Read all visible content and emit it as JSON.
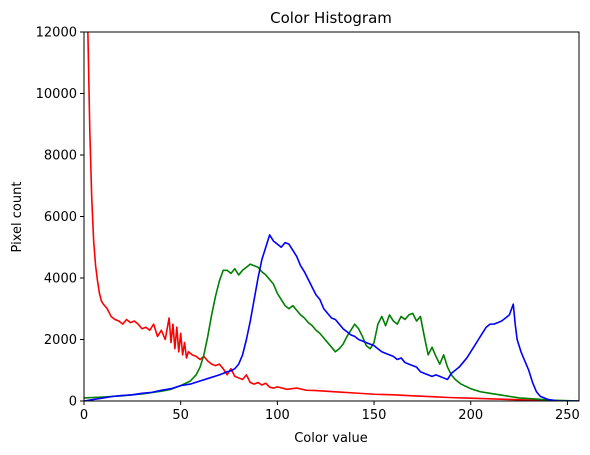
{
  "chart_data": {
    "type": "line",
    "title": "Color Histogram",
    "xlabel": "Color value",
    "ylabel": "Pixel count",
    "xlim": [
      0,
      256
    ],
    "ylim": [
      0,
      12000
    ],
    "xticks": [
      0,
      50,
      100,
      150,
      200,
      250
    ],
    "yticks": [
      0,
      2000,
      4000,
      6000,
      8000,
      10000,
      12000
    ],
    "grid": false,
    "legend": "none",
    "series": [
      {
        "color": "#ff0000",
        "points": [
          [
            2,
            12000
          ],
          [
            3,
            8800
          ],
          [
            4,
            6600
          ],
          [
            5,
            5200
          ],
          [
            6,
            4400
          ],
          [
            7,
            3900
          ],
          [
            8,
            3500
          ],
          [
            9,
            3250
          ],
          [
            10,
            3150
          ],
          [
            12,
            3000
          ],
          [
            14,
            2750
          ],
          [
            16,
            2650
          ],
          [
            18,
            2600
          ],
          [
            20,
            2500
          ],
          [
            22,
            2650
          ],
          [
            24,
            2550
          ],
          [
            26,
            2600
          ],
          [
            28,
            2500
          ],
          [
            30,
            2350
          ],
          [
            32,
            2400
          ],
          [
            34,
            2300
          ],
          [
            36,
            2500
          ],
          [
            38,
            2100
          ],
          [
            40,
            2300
          ],
          [
            42,
            2000
          ],
          [
            44,
            2700
          ],
          [
            45,
            1900
          ],
          [
            46,
            2500
          ],
          [
            47,
            1700
          ],
          [
            48,
            2400
          ],
          [
            49,
            1600
          ],
          [
            50,
            2200
          ],
          [
            51,
            1500
          ],
          [
            52,
            1900
          ],
          [
            53,
            1400
          ],
          [
            54,
            1600
          ],
          [
            56,
            1500
          ],
          [
            58,
            1450
          ],
          [
            60,
            1350
          ],
          [
            62,
            1450
          ],
          [
            64,
            1300
          ],
          [
            66,
            1200
          ],
          [
            68,
            1150
          ],
          [
            70,
            1200
          ],
          [
            72,
            1050
          ],
          [
            74,
            850
          ],
          [
            76,
            1050
          ],
          [
            78,
            800
          ],
          [
            80,
            750
          ],
          [
            82,
            700
          ],
          [
            84,
            850
          ],
          [
            86,
            600
          ],
          [
            88,
            550
          ],
          [
            90,
            600
          ],
          [
            92,
            520
          ],
          [
            94,
            580
          ],
          [
            96,
            450
          ],
          [
            98,
            420
          ],
          [
            100,
            460
          ],
          [
            105,
            380
          ],
          [
            110,
            420
          ],
          [
            115,
            350
          ],
          [
            120,
            340
          ],
          [
            130,
            300
          ],
          [
            140,
            260
          ],
          [
            150,
            220
          ],
          [
            160,
            200
          ],
          [
            170,
            170
          ],
          [
            180,
            140
          ],
          [
            190,
            110
          ],
          [
            200,
            90
          ],
          [
            210,
            70
          ],
          [
            220,
            50
          ],
          [
            230,
            30
          ],
          [
            240,
            10
          ],
          [
            256,
            0
          ]
        ]
      },
      {
        "color": "#008000",
        "points": [
          [
            0,
            100
          ],
          [
            10,
            130
          ],
          [
            20,
            170
          ],
          [
            30,
            230
          ],
          [
            40,
            320
          ],
          [
            45,
            380
          ],
          [
            50,
            500
          ],
          [
            55,
            650
          ],
          [
            58,
            850
          ],
          [
            60,
            1100
          ],
          [
            62,
            1500
          ],
          [
            64,
            2100
          ],
          [
            66,
            2800
          ],
          [
            68,
            3400
          ],
          [
            70,
            3900
          ],
          [
            72,
            4250
          ],
          [
            74,
            4250
          ],
          [
            76,
            4150
          ],
          [
            78,
            4300
          ],
          [
            80,
            4100
          ],
          [
            82,
            4250
          ],
          [
            84,
            4350
          ],
          [
            86,
            4450
          ],
          [
            88,
            4400
          ],
          [
            90,
            4350
          ],
          [
            92,
            4200
          ],
          [
            94,
            4100
          ],
          [
            96,
            3950
          ],
          [
            98,
            3800
          ],
          [
            100,
            3500
          ],
          [
            102,
            3300
          ],
          [
            104,
            3100
          ],
          [
            106,
            3000
          ],
          [
            108,
            3100
          ],
          [
            110,
            2950
          ],
          [
            112,
            2800
          ],
          [
            114,
            2700
          ],
          [
            116,
            2550
          ],
          [
            118,
            2450
          ],
          [
            120,
            2300
          ],
          [
            122,
            2200
          ],
          [
            124,
            2050
          ],
          [
            126,
            1900
          ],
          [
            128,
            1750
          ],
          [
            130,
            1600
          ],
          [
            132,
            1700
          ],
          [
            134,
            1850
          ],
          [
            136,
            2100
          ],
          [
            138,
            2300
          ],
          [
            140,
            2500
          ],
          [
            142,
            2350
          ],
          [
            144,
            2100
          ],
          [
            146,
            1800
          ],
          [
            148,
            1700
          ],
          [
            150,
            1900
          ],
          [
            152,
            2500
          ],
          [
            154,
            2750
          ],
          [
            156,
            2450
          ],
          [
            158,
            2800
          ],
          [
            160,
            2600
          ],
          [
            162,
            2500
          ],
          [
            164,
            2750
          ],
          [
            166,
            2650
          ],
          [
            168,
            2800
          ],
          [
            170,
            2850
          ],
          [
            172,
            2600
          ],
          [
            174,
            2750
          ],
          [
            176,
            2100
          ],
          [
            178,
            1500
          ],
          [
            180,
            1750
          ],
          [
            182,
            1450
          ],
          [
            184,
            1200
          ],
          [
            186,
            1500
          ],
          [
            188,
            1100
          ],
          [
            190,
            850
          ],
          [
            192,
            700
          ],
          [
            195,
            550
          ],
          [
            200,
            400
          ],
          [
            205,
            300
          ],
          [
            210,
            250
          ],
          [
            215,
            200
          ],
          [
            220,
            150
          ],
          [
            225,
            100
          ],
          [
            230,
            80
          ],
          [
            235,
            60
          ],
          [
            240,
            30
          ],
          [
            256,
            0
          ]
        ]
      },
      {
        "color": "#0000ff",
        "points": [
          [
            0,
            0
          ],
          [
            5,
            50
          ],
          [
            10,
            100
          ],
          [
            15,
            150
          ],
          [
            20,
            180
          ],
          [
            25,
            200
          ],
          [
            30,
            250
          ],
          [
            35,
            280
          ],
          [
            40,
            350
          ],
          [
            45,
            400
          ],
          [
            50,
            500
          ],
          [
            55,
            550
          ],
          [
            60,
            650
          ],
          [
            65,
            750
          ],
          [
            70,
            850
          ],
          [
            72,
            900
          ],
          [
            74,
            950
          ],
          [
            76,
            980
          ],
          [
            78,
            1050
          ],
          [
            80,
            1200
          ],
          [
            82,
            1500
          ],
          [
            84,
            2000
          ],
          [
            86,
            2600
          ],
          [
            88,
            3300
          ],
          [
            90,
            4000
          ],
          [
            92,
            4600
          ],
          [
            94,
            5000
          ],
          [
            96,
            5400
          ],
          [
            98,
            5200
          ],
          [
            100,
            5100
          ],
          [
            102,
            5000
          ],
          [
            104,
            5150
          ],
          [
            106,
            5100
          ],
          [
            108,
            4900
          ],
          [
            110,
            4700
          ],
          [
            112,
            4400
          ],
          [
            114,
            4200
          ],
          [
            116,
            3950
          ],
          [
            118,
            3700
          ],
          [
            120,
            3450
          ],
          [
            122,
            3300
          ],
          [
            124,
            3000
          ],
          [
            126,
            2850
          ],
          [
            128,
            2700
          ],
          [
            130,
            2650
          ],
          [
            132,
            2500
          ],
          [
            134,
            2350
          ],
          [
            136,
            2250
          ],
          [
            138,
            2150
          ],
          [
            140,
            2100
          ],
          [
            142,
            2000
          ],
          [
            144,
            1950
          ],
          [
            146,
            1900
          ],
          [
            148,
            1850
          ],
          [
            150,
            1800
          ],
          [
            152,
            1700
          ],
          [
            154,
            1600
          ],
          [
            156,
            1550
          ],
          [
            158,
            1500
          ],
          [
            160,
            1450
          ],
          [
            162,
            1350
          ],
          [
            164,
            1400
          ],
          [
            166,
            1250
          ],
          [
            168,
            1200
          ],
          [
            170,
            1150
          ],
          [
            172,
            1100
          ],
          [
            174,
            950
          ],
          [
            176,
            900
          ],
          [
            178,
            850
          ],
          [
            180,
            800
          ],
          [
            182,
            850
          ],
          [
            184,
            800
          ],
          [
            186,
            750
          ],
          [
            188,
            700
          ],
          [
            190,
            900
          ],
          [
            192,
            1000
          ],
          [
            194,
            1100
          ],
          [
            196,
            1250
          ],
          [
            198,
            1400
          ],
          [
            200,
            1600
          ],
          [
            202,
            1800
          ],
          [
            204,
            2000
          ],
          [
            206,
            2200
          ],
          [
            208,
            2400
          ],
          [
            210,
            2500
          ],
          [
            212,
            2500
          ],
          [
            214,
            2550
          ],
          [
            216,
            2600
          ],
          [
            218,
            2700
          ],
          [
            220,
            2800
          ],
          [
            222,
            3150
          ],
          [
            223,
            2500
          ],
          [
            224,
            2000
          ],
          [
            226,
            1600
          ],
          [
            228,
            1300
          ],
          [
            230,
            1000
          ],
          [
            232,
            600
          ],
          [
            234,
            300
          ],
          [
            236,
            150
          ],
          [
            240,
            50
          ],
          [
            245,
            0
          ],
          [
            256,
            0
          ]
        ]
      }
    ]
  }
}
